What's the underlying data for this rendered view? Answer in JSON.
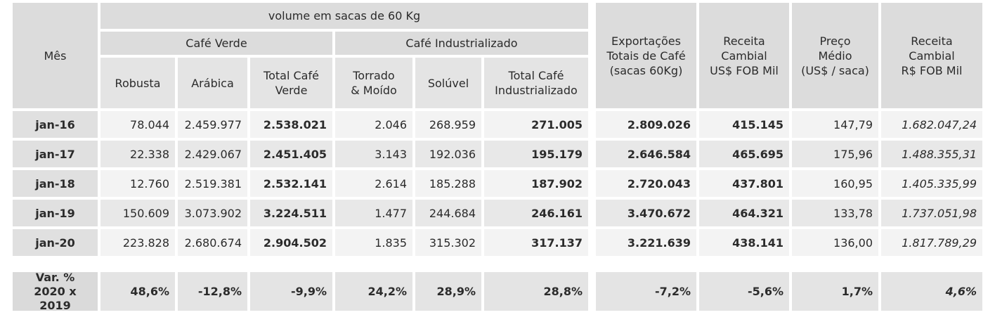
{
  "header": {
    "mes": "Mês",
    "volume_group": "volume em sacas de 60 Kg",
    "cafe_verde": "Café Verde",
    "cafe_industrializado": "Café Industrializado",
    "robusta": "Robusta",
    "arabica": "Arábica",
    "total_verde": "Total Café\nVerde",
    "torrado": "Torrado\n& Moído",
    "soluvel": "Solúvel",
    "total_industrializado": "Total Café\nIndustrializado",
    "exportacoes": "Exportações\nTotais de Café\n(sacas 60Kg)",
    "receita_usd": "Receita\nCambial\nUS$ FOB Mil",
    "preco": "Preço\nMédio\n(US$ / saca)",
    "receita_brl": "Receita\nCambial\nR$ FOB Mil"
  },
  "rows": [
    {
      "mes": "jan-16",
      "robusta": "78.044",
      "arabica": "2.459.977",
      "total_verde": "2.538.021",
      "torrado": "2.046",
      "soluvel": "268.959",
      "total_ind": "271.005",
      "exportacoes": "2.809.026",
      "receita_usd": "415.145",
      "preco": "147,79",
      "receita_brl": "1.682.047,24"
    },
    {
      "mes": "jan-17",
      "robusta": "22.338",
      "arabica": "2.429.067",
      "total_verde": "2.451.405",
      "torrado": "3.143",
      "soluvel": "192.036",
      "total_ind": "195.179",
      "exportacoes": "2.646.584",
      "receita_usd": "465.695",
      "preco": "175,96",
      "receita_brl": "1.488.355,31"
    },
    {
      "mes": "jan-18",
      "robusta": "12.760",
      "arabica": "2.519.381",
      "total_verde": "2.532.141",
      "torrado": "2.614",
      "soluvel": "185.288",
      "total_ind": "187.902",
      "exportacoes": "2.720.043",
      "receita_usd": "437.801",
      "preco": "160,95",
      "receita_brl": "1.405.335,99"
    },
    {
      "mes": "jan-19",
      "robusta": "150.609",
      "arabica": "3.073.902",
      "total_verde": "3.224.511",
      "torrado": "1.477",
      "soluvel": "244.684",
      "total_ind": "246.161",
      "exportacoes": "3.470.672",
      "receita_usd": "464.321",
      "preco": "133,78",
      "receita_brl": "1.737.051,98"
    },
    {
      "mes": "jan-20",
      "robusta": "223.828",
      "arabica": "2.680.674",
      "total_verde": "2.904.502",
      "torrado": "1.835",
      "soluvel": "315.302",
      "total_ind": "317.137",
      "exportacoes": "3.221.639",
      "receita_usd": "438.141",
      "preco": "136,00",
      "receita_brl": "1.817.789,29"
    }
  ],
  "variation": {
    "label": "Var. %\n2020 x 2019",
    "robusta": "48,6%",
    "arabica": "-12,8%",
    "total_verde": "-9,9%",
    "torrado": "24,2%",
    "soluvel": "28,9%",
    "total_ind": "28,8%",
    "exportacoes": "-7,2%",
    "receita_usd": "-5,6%",
    "preco": "1,7%",
    "receita_brl": "4,6%"
  }
}
